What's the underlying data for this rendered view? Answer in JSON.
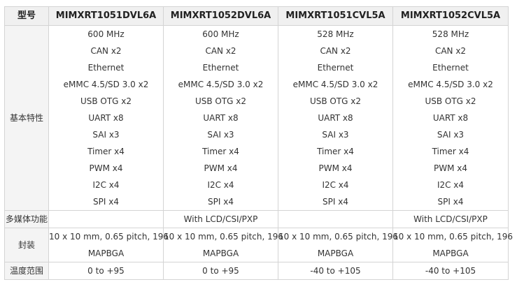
{
  "header": {
    "label": "型号",
    "models": [
      "MIMXRT1051DVL6A",
      "MIMXRT1052DVL6A",
      "MIMXRT1051CVL5A",
      "MIMXRT1052CVL5A"
    ]
  },
  "basic": {
    "label": "基本特性",
    "columns": [
      [
        "600 MHz",
        "CAN x2",
        "Ethernet",
        "eMMC 4.5/SD 3.0 x2",
        "USB OTG x2",
        "UART x8",
        "SAI x3",
        "Timer x4",
        "PWM x4",
        "I2C x4",
        "SPI x4"
      ],
      [
        "600 MHz",
        "CAN x2",
        "Ethernet",
        "eMMC 4.5/SD 3.0 x2",
        "USB OTG x2",
        "UART x8",
        "SAI x3",
        "Timer x4",
        "PWM x4",
        "I2C x4",
        "SPI x4"
      ],
      [
        "528 MHz",
        "CAN x2",
        "Ethernet",
        "eMMC 4.5/SD 3.0 x2",
        "USB OTG x2",
        "UART x8",
        "SAI x3",
        "Timer x4",
        "PWM x4",
        "I2C x4",
        "SPI x4"
      ],
      [
        "528 MHz",
        "CAN x2",
        "Ethernet",
        "eMMC 4.5/SD 3.0 x2",
        "USB OTG x2",
        "UART x8",
        "SAI x3",
        "Timer x4",
        "PWM x4",
        "I2C x4",
        "SPI x4"
      ]
    ]
  },
  "multimedia": {
    "label": "多媒体功能",
    "values": [
      "",
      "With LCD/CSI/PXP",
      "",
      "With LCD/CSI/PXP"
    ]
  },
  "package": {
    "label": "封装",
    "values": [
      [
        "10 x 10 mm, 0.65 pitch, 196",
        "MAPBGA"
      ],
      [
        "10 x 10 mm, 0.65 pitch, 196",
        "MAPBGA"
      ],
      [
        "10 x 10 mm, 0.65 pitch, 196",
        "MAPBGA"
      ],
      [
        "10 x 10 mm, 0.65 pitch, 196",
        "MAPBGA"
      ]
    ]
  },
  "temperature": {
    "label": "温度范围",
    "values": [
      "0 to +95",
      "0 to +95",
      "-40 to +105",
      "-40 to +105"
    ]
  }
}
